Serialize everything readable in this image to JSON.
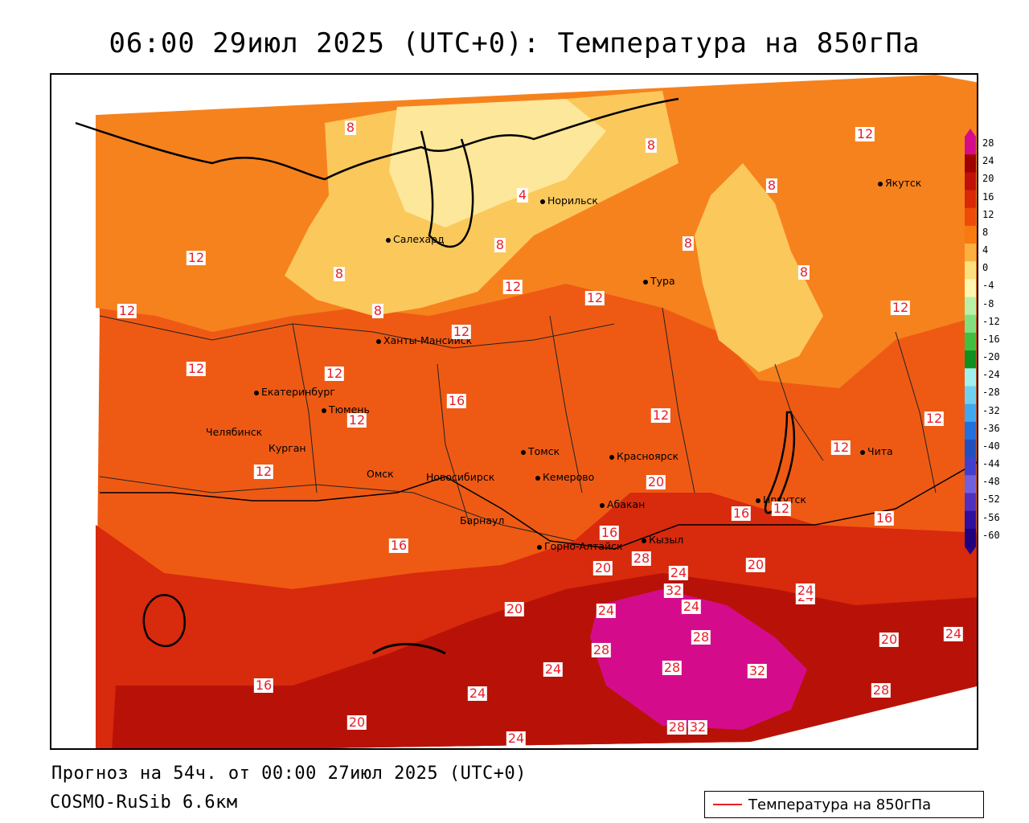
{
  "title": "06:00 29июл 2025 (UTC+0): Температура на 850гПа",
  "footer": {
    "forecast": "Прогноз на 54ч. от 00:00 27июл 2025 (UTC+0)",
    "model": "COSMO-RuSib 6.6км"
  },
  "legend": {
    "label": "Температура на 850гПа",
    "line_color": "#e8202a"
  },
  "cities": [
    {
      "name": "Норильск",
      "key": "norilsk"
    },
    {
      "name": "Якутск",
      "key": "yakutsk"
    },
    {
      "name": "Салехард",
      "key": "salekhard"
    },
    {
      "name": "Тура",
      "key": "tura"
    },
    {
      "name": "Ханты-Мансийск",
      "key": "khanty"
    },
    {
      "name": "Екатеринбург",
      "key": "ekb"
    },
    {
      "name": "Тюмень",
      "key": "tyumen"
    },
    {
      "name": "Челябинск",
      "key": "chelyabinsk"
    },
    {
      "name": "Курган",
      "key": "kurgan"
    },
    {
      "name": "Омск",
      "key": "omsk"
    },
    {
      "name": "Новосибирск",
      "key": "novosibirsk"
    },
    {
      "name": "Томск",
      "key": "tomsk"
    },
    {
      "name": "Кемерово",
      "key": "kemerovo"
    },
    {
      "name": "Красноярск",
      "key": "krasnoyarsk"
    },
    {
      "name": "Барнаул",
      "key": "barnaul"
    },
    {
      "name": "Абакан",
      "key": "abakan"
    },
    {
      "name": "Горно-Алтайск",
      "key": "gorno"
    },
    {
      "name": "Кызыл",
      "key": "kyzyl"
    },
    {
      "name": "Иркутск",
      "key": "irkutsk"
    },
    {
      "name": "Чита",
      "key": "chita"
    }
  ],
  "isolines": [
    "8",
    "4",
    "8",
    "8",
    "12",
    "8",
    "8",
    "8",
    "8",
    "12",
    "12",
    "12",
    "8",
    "12",
    "12",
    "12",
    "12",
    "12",
    "16",
    "12",
    "12",
    "12",
    "12",
    "16",
    "12",
    "20",
    "16",
    "12",
    "16",
    "20",
    "28",
    "16",
    "24",
    "32",
    "24",
    "20",
    "24",
    "24",
    "20",
    "24",
    "28",
    "28",
    "28",
    "32",
    "24",
    "20",
    "24",
    "28",
    "16",
    "24",
    "20",
    "24",
    "28",
    "32"
  ],
  "colorbar": {
    "labels": [
      "28",
      "24",
      "20",
      "16",
      "12",
      "8",
      "4",
      "0",
      "-4",
      "-8",
      "-12",
      "-16",
      "-20",
      "-24",
      "-28",
      "-32",
      "-36",
      "-40",
      "-44",
      "-48",
      "-52",
      "-56",
      "-60"
    ],
    "colors": [
      "#d40c8c",
      "#a00000",
      "#c01008",
      "#d82808",
      "#ee4a08",
      "#f87a10",
      "#fbb040",
      "#fde080",
      "#fff6b0",
      "#b8f0a8",
      "#80e080",
      "#40c040",
      "#109020",
      "#a0f0f0",
      "#70d0f0",
      "#40a8f0",
      "#2070e0",
      "#2050c0",
      "#4040d0",
      "#7060e0",
      "#5030c0",
      "#3010a0",
      "#200080"
    ]
  }
}
